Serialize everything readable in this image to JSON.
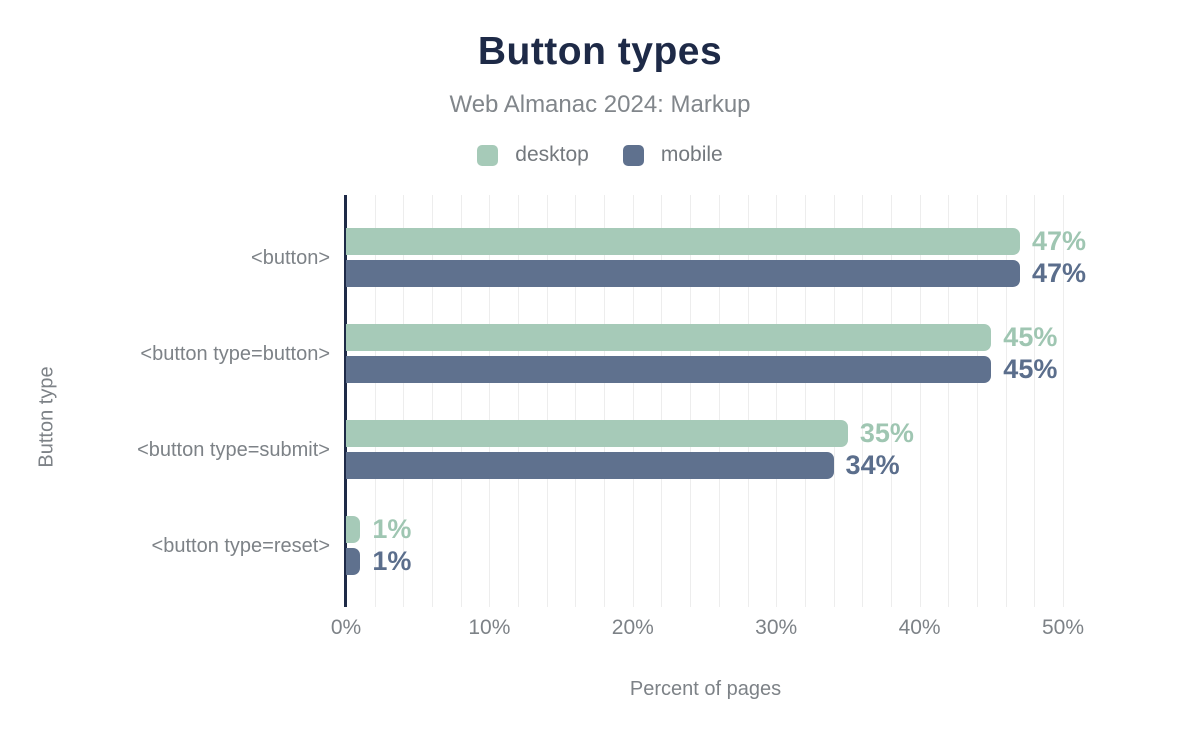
{
  "page": {
    "background": "#ffffff"
  },
  "chart_data": {
    "type": "bar",
    "orientation": "horizontal",
    "title": "Button types",
    "subtitle": "Web Almanac 2024: Markup",
    "xlabel": "Percent of pages",
    "ylabel": "Button type",
    "categories": [
      "<button>",
      "<button type=button>",
      "<button type=submit>",
      "<button type=reset>"
    ],
    "series": [
      {
        "name": "desktop",
        "values": [
          47,
          45,
          35,
          1
        ],
        "value_labels": [
          "47%",
          "45%",
          "35%",
          "1%"
        ],
        "color": "#a6cab8",
        "label_color": "#9fc6b2"
      },
      {
        "name": "mobile",
        "values": [
          47,
          45,
          34,
          1
        ],
        "value_labels": [
          "47%",
          "45%",
          "34%",
          "1%"
        ],
        "color": "#5f718e",
        "label_color": "#5b6e8c"
      }
    ],
    "x_ticks": [
      "0%",
      "10%",
      "20%",
      "30%",
      "40%",
      "50%"
    ],
    "xlim": [
      0,
      50.2
    ],
    "grid": {
      "interval": 2,
      "color": "#ededed",
      "axis_color": "#1e2a47"
    },
    "legend_position": "top",
    "colors": {
      "title": "#1e2a47",
      "muted_text": "#7d8287"
    }
  }
}
